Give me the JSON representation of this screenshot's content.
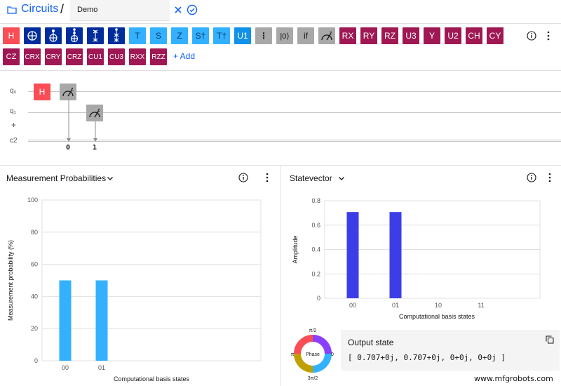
{
  "header": {
    "breadcrumb": "Circuits",
    "separator": "/",
    "circuit_name": "Demo"
  },
  "toolbar": {
    "gates_row1": [
      {
        "label": "H",
        "color": "red"
      },
      {
        "label": "",
        "color": "navy",
        "icon": "not-icon"
      },
      {
        "label": "",
        "color": "navy",
        "icon": "cnot-icon"
      },
      {
        "label": "",
        "color": "navy",
        "icon": "toffoli-icon"
      },
      {
        "label": "",
        "color": "navy",
        "icon": "swap-icon"
      },
      {
        "label": "",
        "color": "navy",
        "icon": "cswap-icon"
      },
      {
        "label": "T",
        "color": "cyan"
      },
      {
        "label": "S",
        "color": "cyan"
      },
      {
        "label": "Z",
        "color": "cyan"
      },
      {
        "label": "S†",
        "color": "cyan"
      },
      {
        "label": "T†",
        "color": "cyan"
      },
      {
        "label": "U1",
        "color": "cyan2"
      },
      {
        "label": "⋮",
        "color": "gray",
        "icon": "barrier-icon"
      },
      {
        "label": "|0⟩",
        "color": "gray"
      },
      {
        "label": "if",
        "color": "gray"
      },
      {
        "label": "",
        "color": "gray",
        "icon": "measure-icon"
      },
      {
        "label": "RX",
        "color": "maroon"
      },
      {
        "label": "RY",
        "color": "maroon"
      },
      {
        "label": "RZ",
        "color": "maroon"
      },
      {
        "label": "U3",
        "color": "maroon"
      },
      {
        "label": "Y",
        "color": "maroon"
      },
      {
        "label": "U2",
        "color": "maroon"
      },
      {
        "label": "CH",
        "color": "maroon"
      },
      {
        "label": "CY",
        "color": "maroon"
      }
    ],
    "gates_row2": [
      {
        "label": "CZ"
      },
      {
        "label": "CRX"
      },
      {
        "label": "CRY"
      },
      {
        "label": "CRZ"
      },
      {
        "label": "CU1"
      },
      {
        "label": "CU3"
      },
      {
        "label": "RXX"
      },
      {
        "label": "RZZ"
      }
    ],
    "add_label": "+ Add"
  },
  "circuit": {
    "qubits": [
      "q₀",
      "q₁"
    ],
    "add_qubit": "+",
    "classical": "c2",
    "gates": [
      {
        "label": "H",
        "qubit": 0
      }
    ],
    "measure_targets": [
      "0",
      "1"
    ]
  },
  "probabilities_panel": {
    "title": "Measurement Probabilities",
    "chart_data": {
      "type": "bar",
      "title": "Measurement Probabilities",
      "categories": [
        "00",
        "01"
      ],
      "values": [
        50,
        50
      ],
      "xlabel": "Computational basis states",
      "ylabel": "Measurement probability (%)",
      "yticks": [
        "0",
        "20",
        "40",
        "60",
        "80",
        "100"
      ],
      "ylim": [
        0,
        100
      ],
      "color": "#33b1ff"
    }
  },
  "statevector_panel": {
    "title": "Statevector",
    "chart_data": {
      "type": "bar",
      "title": "Statevector",
      "categories": [
        "00",
        "01",
        "10",
        "11"
      ],
      "values": [
        0.707,
        0.707,
        0,
        0
      ],
      "xlabel": "Computational basis states",
      "ylabel": "Amplitude",
      "yticks": [
        "0",
        "0.2",
        "0.4",
        "0.6",
        "0.8"
      ],
      "ylim": [
        0,
        0.8
      ],
      "color": "#3d3de8"
    },
    "phase_wheel": {
      "center_label": "Phase",
      "top": "π/2",
      "right": "0",
      "bottom": "3π/2",
      "left": "π"
    },
    "output": {
      "title": "Output state",
      "value": "[ 0.707+0j, 0.707+0j, 0+0j, 0+0j ]"
    }
  },
  "watermark": "www.mfgrobots.com",
  "colors": {
    "red": "#fa4d56",
    "navy": "#002d9c",
    "cyan": "#33b1ff",
    "maroon": "#9f1853",
    "gray": "#a8a8a8",
    "link": "#0f62fe"
  }
}
